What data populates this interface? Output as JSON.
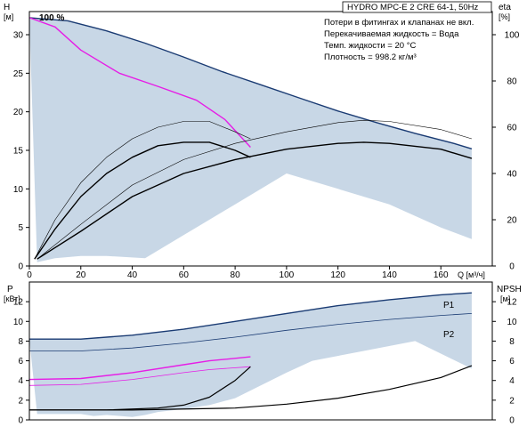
{
  "chart_data": [
    {
      "type": "line",
      "title": "HYDRO MPC-E 2 CRE 64-1, 50Hz",
      "notes": [
        "Потери в фитингах и клапанах не вкл.",
        "Перекачиваемая жидкость = Вода",
        "Темп. жидкости = 20 °C",
        "Плотность = 998.2 кг/м³"
      ],
      "speed_label": "100 %",
      "xlabel": "Q [м³/ч]",
      "ylabel_left": "H",
      "ylabel_left_unit": "[м]",
      "ylabel_right": "eta",
      "ylabel_right_unit": "[%]",
      "xlim": [
        0,
        180
      ],
      "ylim_left": [
        0,
        33
      ],
      "ylim_right": [
        0,
        110
      ],
      "x_ticks": [
        0,
        20,
        40,
        60,
        80,
        100,
        120,
        140,
        160
      ],
      "y_ticks_left": [
        0,
        5,
        10,
        15,
        20,
        25,
        30
      ],
      "y_ticks_right": [
        0,
        20,
        40,
        60,
        80,
        100
      ],
      "colors": {
        "area": "#c8d7e6",
        "head": "#1a3b73",
        "single_head": "#e61ee6",
        "eta": "#000000"
      },
      "series": [
        {
          "role": "head-max",
          "axis": "left",
          "x": [
            0,
            15,
            30,
            45,
            60,
            75,
            90,
            105,
            120,
            135,
            150,
            165,
            172
          ],
          "values": [
            32.2,
            31.8,
            30.5,
            28.9,
            27.1,
            25.2,
            23.5,
            21.8,
            20.1,
            18.6,
            17.2,
            15.9,
            15.2
          ]
        },
        {
          "role": "head-single-pump",
          "axis": "left",
          "x": [
            0,
            10,
            20,
            35,
            50,
            65,
            76,
            86
          ],
          "values": [
            32.2,
            31.0,
            28.0,
            25.0,
            23.3,
            21.5,
            19.0,
            15.4
          ]
        },
        {
          "role": "eta-single-thin",
          "axis": "right",
          "x": [
            2,
            10,
            20,
            30,
            40,
            50,
            60,
            70,
            80,
            86
          ],
          "values": [
            3,
            20,
            36,
            47,
            55,
            60,
            62.5,
            62.5,
            58,
            55
          ]
        },
        {
          "role": "eta-single-thick",
          "axis": "right",
          "x": [
            2,
            10,
            20,
            30,
            40,
            50,
            60,
            70,
            80,
            86
          ],
          "values": [
            3,
            16,
            30,
            40,
            47,
            52,
            53.5,
            53.5,
            50,
            47
          ]
        },
        {
          "role": "eta-system-thin",
          "axis": "right",
          "x": [
            3,
            20,
            40,
            60,
            80,
            100,
            120,
            130,
            140,
            160,
            172
          ],
          "values": [
            3,
            18,
            35,
            46,
            53,
            58,
            62,
            63,
            62.5,
            59,
            55
          ]
        },
        {
          "role": "eta-system-thick",
          "axis": "right",
          "x": [
            3,
            20,
            40,
            60,
            80,
            100,
            120,
            130,
            140,
            160,
            172
          ],
          "values": [
            3,
            15,
            30,
            40,
            46,
            50.5,
            53,
            53.5,
            53,
            50.5,
            46.5
          ]
        }
      ],
      "area": {
        "x": [
          0,
          15,
          30,
          45,
          60,
          75,
          90,
          105,
          120,
          135,
          150,
          165,
          172,
          172,
          160,
          150,
          140,
          120,
          100,
          80,
          60,
          45,
          30,
          20,
          10,
          3
        ],
        "values": [
          32.2,
          31.8,
          30.5,
          28.9,
          27.1,
          25.2,
          23.5,
          21.8,
          20.1,
          18.6,
          17.2,
          15.9,
          15.2,
          3.5,
          5.0,
          6.5,
          8.0,
          10.0,
          12.0,
          8.0,
          4.0,
          1.0,
          1.3,
          1.3,
          1.0,
          0.5
        ]
      }
    },
    {
      "type": "line",
      "ylabel_left": "P",
      "ylabel_left_unit": "[кВт]",
      "ylabel_right": "NPSH",
      "ylabel_right_unit": "[м]",
      "xlim": [
        0,
        180
      ],
      "ylim_left": [
        0,
        14
      ],
      "ylim_right": [
        0,
        14
      ],
      "y_ticks_left": [
        0,
        2,
        4,
        6,
        8,
        10,
        12
      ],
      "y_ticks_right": [
        0,
        2,
        4,
        6,
        8,
        10,
        12
      ],
      "series": [
        {
          "name": "P1",
          "axis": "left",
          "x": [
            0,
            20,
            40,
            60,
            80,
            100,
            120,
            140,
            160,
            172
          ],
          "values": [
            8.2,
            8.2,
            8.6,
            9.2,
            10.0,
            10.8,
            11.6,
            12.2,
            12.7,
            12.9
          ]
        },
        {
          "name": "P2",
          "axis": "left",
          "x": [
            0,
            20,
            40,
            60,
            80,
            100,
            120,
            140,
            160,
            172
          ],
          "values": [
            7.0,
            7.0,
            7.3,
            7.8,
            8.4,
            9.1,
            9.7,
            10.2,
            10.6,
            10.8
          ]
        },
        {
          "role": "p1-single-pump",
          "axis": "left",
          "x": [
            0,
            20,
            40,
            60,
            70,
            86
          ],
          "values": [
            4.1,
            4.2,
            4.8,
            5.6,
            6.0,
            6.4
          ]
        },
        {
          "role": "p2-single-pump",
          "axis": "left",
          "x": [
            0,
            20,
            40,
            60,
            70,
            86
          ],
          "values": [
            3.5,
            3.6,
            4.1,
            4.8,
            5.1,
            5.4
          ]
        },
        {
          "role": "npsh-single-pump",
          "axis": "right",
          "x": [
            0,
            30,
            50,
            60,
            70,
            80,
            86
          ],
          "values": [
            1.0,
            1.0,
            1.2,
            1.5,
            2.3,
            4.0,
            5.4
          ]
        },
        {
          "role": "npsh-system",
          "axis": "right",
          "x": [
            0,
            40,
            80,
            100,
            120,
            140,
            160,
            172
          ],
          "values": [
            1.0,
            1.0,
            1.2,
            1.6,
            2.2,
            3.1,
            4.3,
            5.5
          ]
        }
      ],
      "area": {
        "x": [
          0,
          20,
          40,
          60,
          80,
          100,
          120,
          140,
          160,
          172,
          172,
          150,
          130,
          110,
          100,
          90,
          80,
          70,
          60,
          50,
          45,
          40,
          30,
          25,
          20,
          10,
          3
        ],
        "values": [
          8.2,
          8.2,
          8.6,
          9.2,
          10.0,
          10.8,
          11.6,
          12.2,
          12.7,
          12.9,
          5.2,
          8.0,
          7.0,
          6.0,
          4.8,
          3.5,
          2.2,
          1.5,
          1.1,
          0.8,
          0.5,
          0.3,
          0.5,
          0.4,
          0.6,
          0.6,
          0.6
        ]
      }
    }
  ]
}
